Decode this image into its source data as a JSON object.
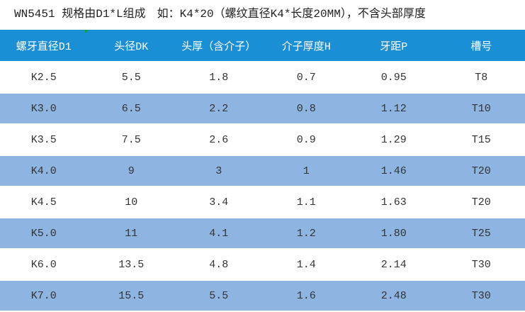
{
  "header": {
    "title": "WN5451 规格由D1*L组成　如：K4*20（螺纹直径K4*长度20MM），不含头部厚度"
  },
  "table": {
    "columns": [
      "螺牙直径D1",
      "头径DK",
      "头厚（含介子）",
      "介子厚度H",
      "牙距P",
      "槽号"
    ],
    "rows": [
      [
        "K2.5",
        "5.5",
        "1.8",
        "0.7",
        "0.95",
        "T8"
      ],
      [
        "K3.0",
        "6.5",
        "2.2",
        "0.8",
        "1.12",
        "T10"
      ],
      [
        "K3.5",
        "7.5",
        "2.6",
        "0.9",
        "1.29",
        "T15"
      ],
      [
        "K4.0",
        "9",
        "3",
        "1",
        "1.46",
        "T20"
      ],
      [
        "K4.5",
        "10",
        "3.4",
        "1.1",
        "1.63",
        "T20"
      ],
      [
        "K5.0",
        "11",
        "4.1",
        "1.2",
        "1.80",
        "T25"
      ],
      [
        "K6.0",
        "13.5",
        "4.8",
        "1.4",
        "2.14",
        "T30"
      ],
      [
        "K7.0",
        "15.5",
        "5.5",
        "1.6",
        "2.48",
        "T30"
      ]
    ]
  }
}
